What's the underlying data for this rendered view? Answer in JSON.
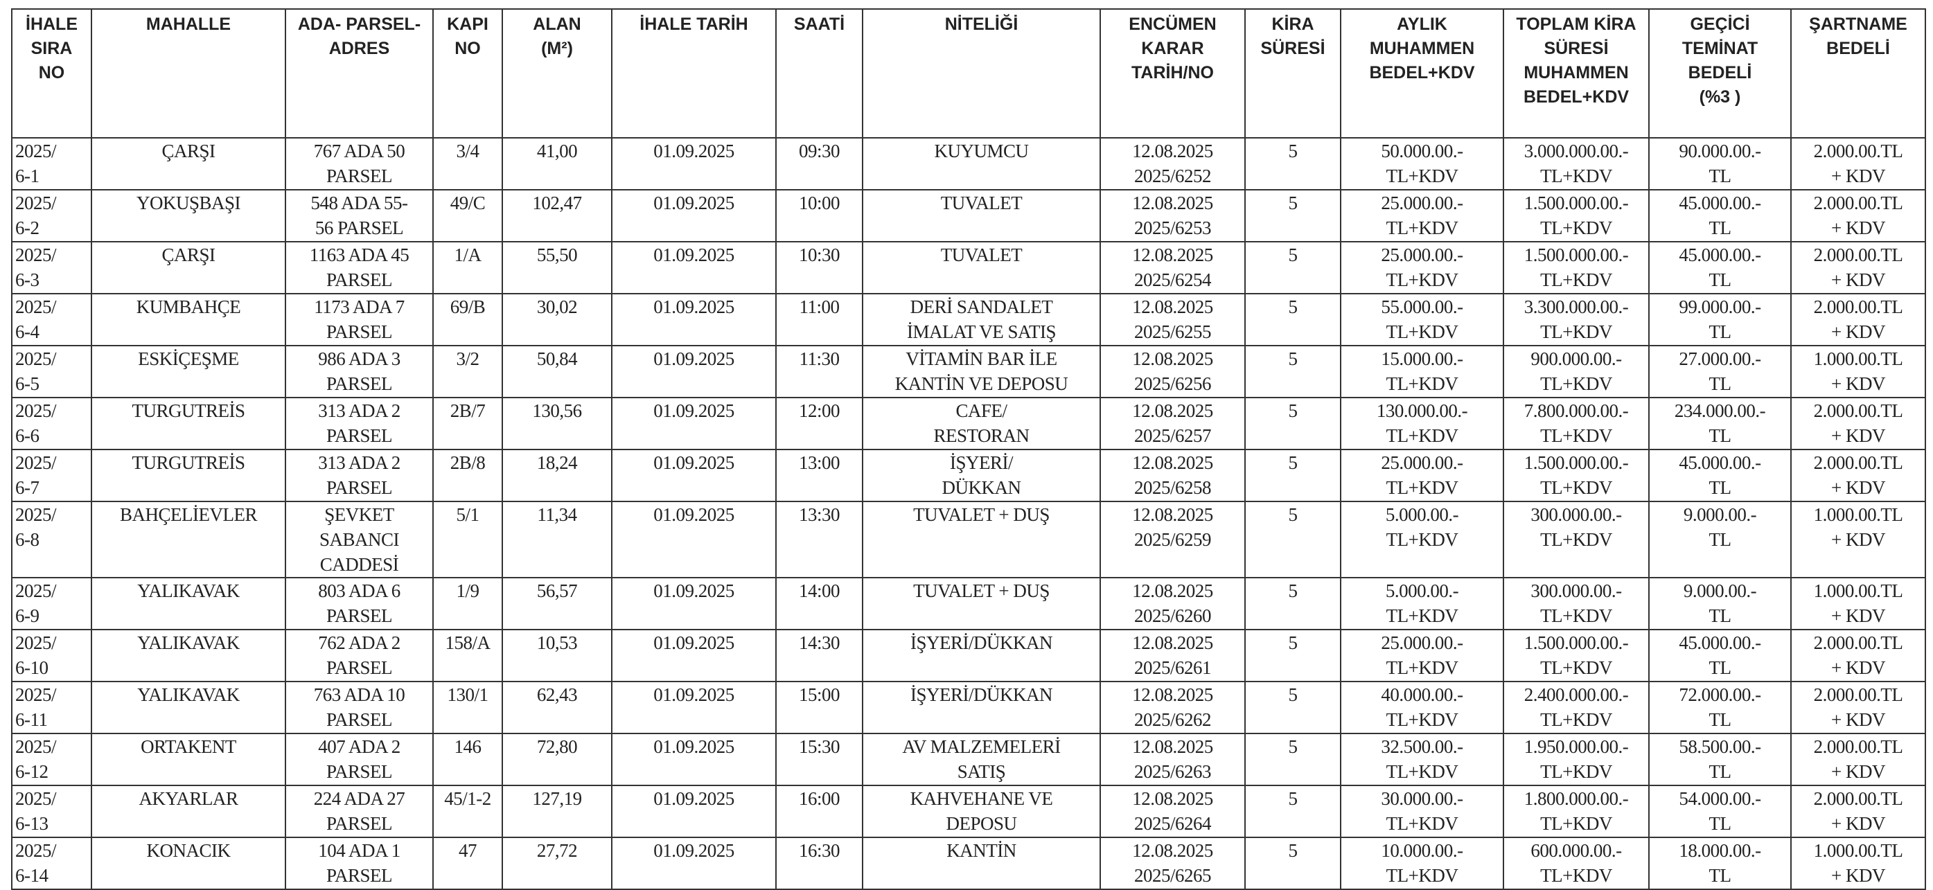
{
  "headers": [
    "İHALE\nSIRA\nNO",
    "MAHALLE",
    "ADA- PARSEL-\nADRES",
    "KAPI\nNO",
    "ALAN\n(M²)",
    "İHALE TARİH",
    "SAATİ",
    "NİTELİĞİ",
    "ENCÜMEN\nKARAR\nTARİH/NO",
    "KİRA\nSÜRESİ",
    "AYLIK\nMUHAMMEN\nBEDEL+KDV",
    "TOPLAM KİRA\nSÜRESİ\nMUHAMMEN\nBEDEL+KDV",
    "GEÇİCİ\nTEMİNAT\nBEDELİ\n(%3 )",
    "ŞARTNAME\nBEDELİ"
  ],
  "rows": [
    [
      "2025/\n6-1",
      "ÇARŞI",
      "767 ADA 50\nPARSEL",
      "3/4",
      "41,00",
      "01.09.2025",
      "09:30",
      "KUYUMCU",
      "12.08.2025\n2025/6252",
      "5",
      "50.000.00.-\nTL+KDV",
      "3.000.000.00.-\nTL+KDV",
      "90.000.00.-\nTL",
      "2.000.00.TL\n+ KDV"
    ],
    [
      "2025/\n6-2",
      "YOKUŞBAŞI",
      "548 ADA 55-\n56 PARSEL",
      "49/C",
      "102,47",
      "01.09.2025",
      "10:00",
      "TUVALET",
      "12.08.2025\n2025/6253",
      "5",
      "25.000.00.-\nTL+KDV",
      "1.500.000.00.-\nTL+KDV",
      "45.000.00.-\nTL",
      "2.000.00.TL\n+ KDV"
    ],
    [
      "2025/\n6-3",
      "ÇARŞI",
      "1163 ADA 45\nPARSEL",
      "1/A",
      "55,50",
      "01.09.2025",
      "10:30",
      "TUVALET",
      "12.08.2025\n2025/6254",
      "5",
      "25.000.00.-\nTL+KDV",
      "1.500.000.00.-\nTL+KDV",
      "45.000.00.-\nTL",
      "2.000.00.TL\n+ KDV"
    ],
    [
      "2025/\n6-4",
      "KUMBAHÇE",
      "1173 ADA 7\nPARSEL",
      "69/B",
      "30,02",
      "01.09.2025",
      "11:00",
      "DERİ SANDALET\nİMALAT VE SATIŞ",
      "12.08.2025\n2025/6255",
      "5",
      "55.000.00.-\nTL+KDV",
      "3.300.000.00.-\nTL+KDV",
      "99.000.00.-\nTL",
      "2.000.00.TL\n+ KDV"
    ],
    [
      "2025/\n6-5",
      "ESKİÇEŞME",
      "986 ADA 3\nPARSEL",
      "3/2",
      "50,84",
      "01.09.2025",
      "11:30",
      "VİTAMİN BAR İLE\nKANTİN VE DEPOSU",
      "12.08.2025\n2025/6256",
      "5",
      "15.000.00.-\nTL+KDV",
      "900.000.00.-\nTL+KDV",
      "27.000.00.-\nTL",
      "1.000.00.TL\n+ KDV"
    ],
    [
      "2025/\n6-6",
      "TURGUTREİS",
      "313 ADA 2\nPARSEL",
      "2B/7",
      "130,56",
      "01.09.2025",
      "12:00",
      "CAFE/\nRESTORAN",
      "12.08.2025\n2025/6257",
      "5",
      "130.000.00.-\nTL+KDV",
      "7.800.000.00.-\nTL+KDV",
      "234.000.00.-\nTL",
      "2.000.00.TL\n+ KDV"
    ],
    [
      "2025/\n6-7",
      "TURGUTREİS",
      "313 ADA 2\nPARSEL",
      "2B/8",
      "18,24",
      "01.09.2025",
      "13:00",
      "İŞYERİ/\nDÜKKAN",
      "12.08.2025\n2025/6258",
      "5",
      "25.000.00.-\nTL+KDV",
      "1.500.000.00.-\nTL+KDV",
      "45.000.00.-\nTL",
      "2.000.00.TL\n+ KDV"
    ],
    [
      "2025/\n6-8",
      "BAHÇELİEVLER",
      "ŞEVKET\nSABANCI\nCADDESİ",
      "5/1",
      "11,34",
      "01.09.2025",
      "13:30",
      "TUVALET + DUŞ",
      "12.08.2025\n2025/6259",
      "5",
      "5.000.00.-\nTL+KDV",
      "300.000.00.-\nTL+KDV",
      "9.000.00.-\nTL",
      "1.000.00.TL\n+ KDV"
    ],
    [
      "2025/\n6-9",
      "YALIKAVAK",
      "803 ADA 6\nPARSEL",
      "1/9",
      "56,57",
      "01.09.2025",
      "14:00",
      "TUVALET + DUŞ",
      "12.08.2025\n2025/6260",
      "5",
      "5.000.00.-\nTL+KDV",
      "300.000.00.-\nTL+KDV",
      "9.000.00.-\nTL",
      "1.000.00.TL\n+ KDV"
    ],
    [
      "2025/\n6-10",
      "YALIKAVAK",
      "762 ADA 2\nPARSEL",
      "158/A",
      "10,53",
      "01.09.2025",
      "14:30",
      "İŞYERİ/DÜKKAN",
      "12.08.2025\n2025/6261",
      "5",
      "25.000.00.-\nTL+KDV",
      "1.500.000.00.-\nTL+KDV",
      "45.000.00.-\nTL",
      "2.000.00.TL\n+ KDV"
    ],
    [
      "2025/\n6-11",
      "YALIKAVAK",
      "763 ADA 10\nPARSEL",
      "130/1",
      "62,43",
      "01.09.2025",
      "15:00",
      "İŞYERİ/DÜKKAN",
      "12.08.2025\n2025/6262",
      "5",
      "40.000.00.-\nTL+KDV",
      "2.400.000.00.-\nTL+KDV",
      "72.000.00.-\nTL",
      "2.000.00.TL\n+ KDV"
    ],
    [
      "2025/\n6-12",
      "ORTAKENT",
      "407 ADA 2\nPARSEL",
      "146",
      "72,80",
      "01.09.2025",
      "15:30",
      "AV MALZEMELERİ\nSATIŞ",
      "12.08.2025\n2025/6263",
      "5",
      "32.500.00.-\nTL+KDV",
      "1.950.000.00.-\nTL+KDV",
      "58.500.00.-\nTL",
      "2.000.00.TL\n+ KDV"
    ],
    [
      "2025/\n6-13",
      "AKYARLAR",
      "224 ADA 27\nPARSEL",
      "45/1-2",
      "127,19",
      "01.09.2025",
      "16:00",
      "KAHVEHANE VE\nDEPOSU",
      "12.08.2025\n2025/6264",
      "5",
      "30.000.00.-\nTL+KDV",
      "1.800.000.00.-\nTL+KDV",
      "54.000.00.-\nTL",
      "2.000.00.TL\n+ KDV"
    ],
    [
      "2025/\n6-14",
      "KONACIK",
      "104 ADA 1\nPARSEL",
      "47",
      "27,72",
      "01.09.2025",
      "16:30",
      "KANTİN",
      "12.08.2025\n2025/6265",
      "5",
      "10.000.00.-\nTL+KDV",
      "600.000.00.-\nTL+KDV",
      "18.000.00.-\nTL",
      "1.000.00.TL\n+ KDV"
    ]
  ]
}
